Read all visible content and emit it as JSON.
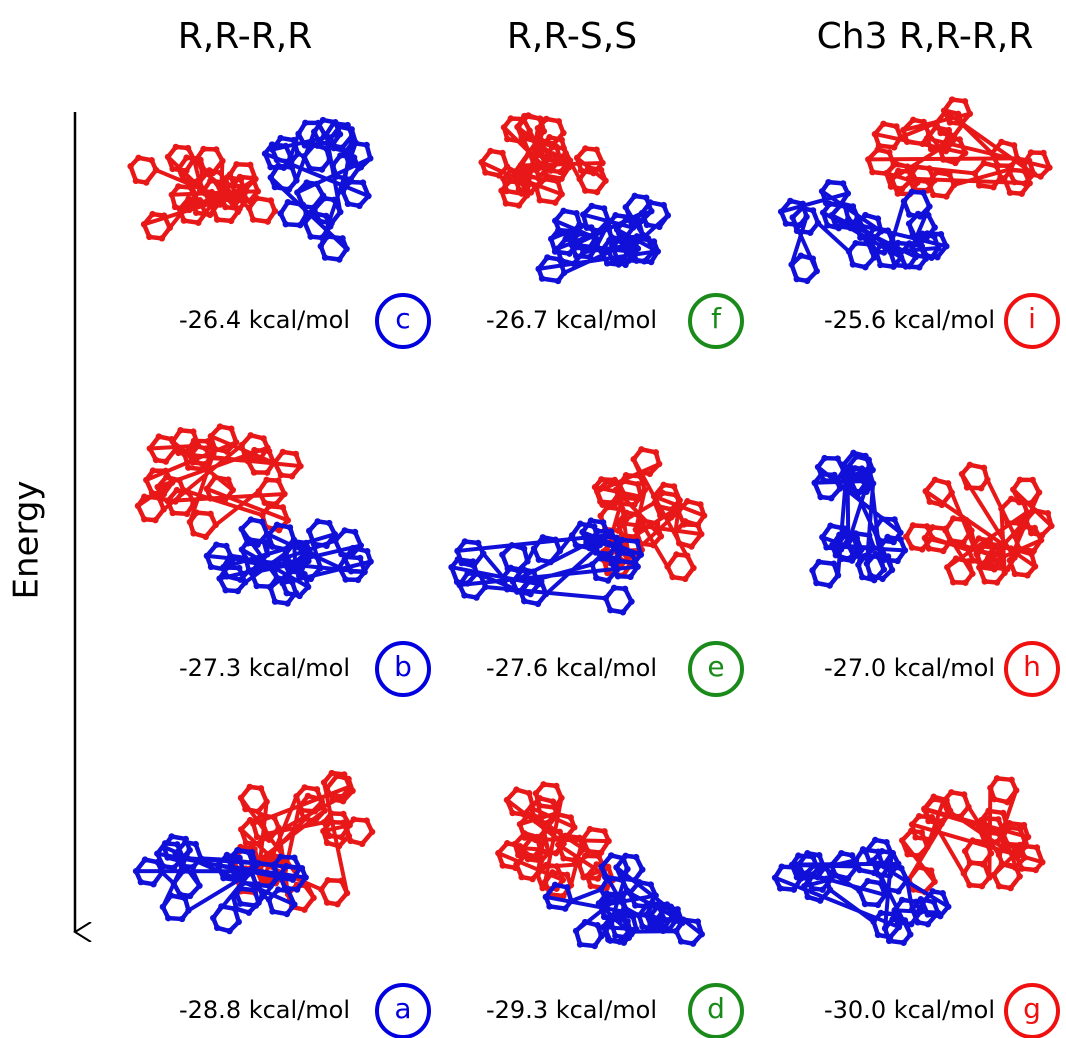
{
  "columns": [
    "R,R-R,R",
    "R,R-S,S",
    "Ch3 R,R-R,R"
  ],
  "axis_label": "Energy",
  "panels": [
    {
      "energy": "-26.4 kcal/mol",
      "label": "c",
      "color": "#0000e0"
    },
    {
      "energy": "-26.7 kcal/mol",
      "label": "f",
      "color": "#1a8a1a"
    },
    {
      "energy": "-25.6 kcal/mol",
      "label": "i",
      "color": "#f01010"
    },
    {
      "energy": "-27.3 kcal/mol",
      "label": "b",
      "color": "#0000e0"
    },
    {
      "energy": "-27.6 kcal/mol",
      "label": "e",
      "color": "#1a8a1a"
    },
    {
      "energy": "-27.0 kcal/mol",
      "label": "h",
      "color": "#f01010"
    },
    {
      "energy": "-28.8 kcal/mol",
      "label": "a",
      "color": "#0000e0"
    },
    {
      "energy": "-29.3 kcal/mol",
      "label": "d",
      "color": "#1a8a1a"
    },
    {
      "energy": "-30.0 kcal/mol",
      "label": "g",
      "color": "#f01010"
    }
  ]
}
